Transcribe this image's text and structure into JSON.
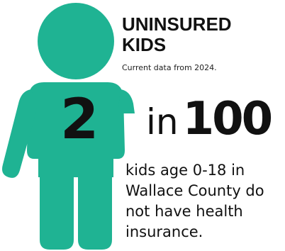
{
  "title_lines": [
    "UNINSURED",
    "KIDS"
  ],
  "subtitle": "Current data from 2024.",
  "stat": {
    "numerator": "2",
    "connector": "in",
    "denominator": "100"
  },
  "description": "kids age 0-18 in Wallace County do not have health insurance.",
  "colors": {
    "figure": "#1FB393",
    "text": "#111111",
    "background": "#ffffff"
  },
  "icon": "child-figure-icon"
}
